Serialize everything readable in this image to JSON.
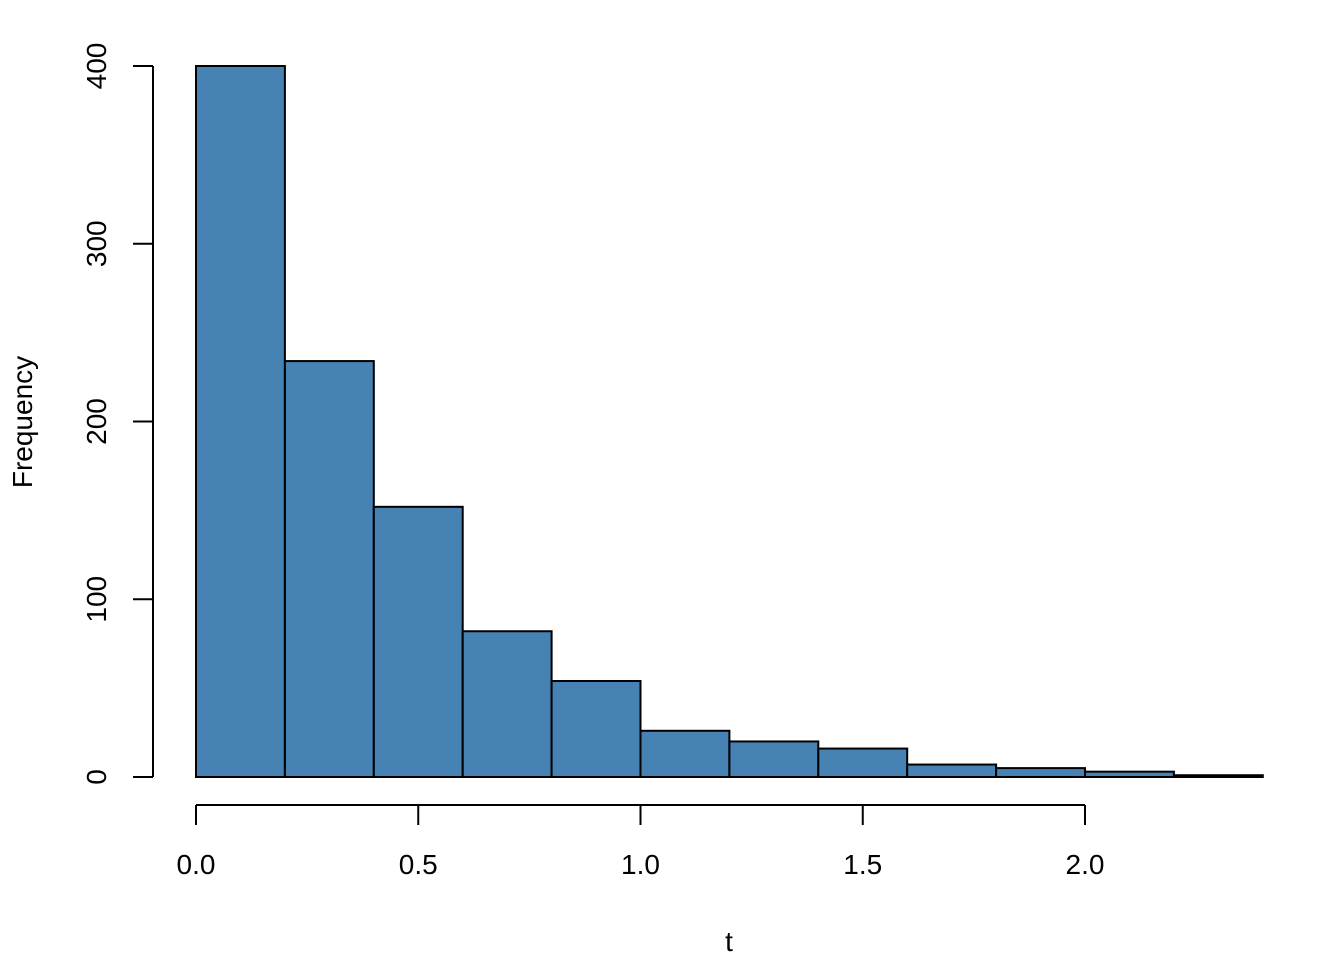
{
  "chart_data": {
    "type": "bar",
    "subtype": "histogram",
    "xlabel": "t",
    "ylabel": "Frequency",
    "bins": [
      {
        "from": 0.0,
        "to": 0.2,
        "count": 400
      },
      {
        "from": 0.2,
        "to": 0.4,
        "count": 234
      },
      {
        "from": 0.4,
        "to": 0.6,
        "count": 152
      },
      {
        "from": 0.6,
        "to": 0.8,
        "count": 82
      },
      {
        "from": 0.8,
        "to": 1.0,
        "count": 54
      },
      {
        "from": 1.0,
        "to": 1.2,
        "count": 26
      },
      {
        "from": 1.2,
        "to": 1.4,
        "count": 20
      },
      {
        "from": 1.4,
        "to": 1.6,
        "count": 16
      },
      {
        "from": 1.6,
        "to": 1.8,
        "count": 7
      },
      {
        "from": 1.8,
        "to": 2.0,
        "count": 5
      },
      {
        "from": 2.0,
        "to": 2.2,
        "count": 3
      },
      {
        "from": 2.2,
        "to": 2.4,
        "count": 1
      }
    ],
    "xticks": [
      0.0,
      0.5,
      1.0,
      1.5,
      2.0
    ],
    "xtick_labels": [
      "0.0",
      "0.5",
      "1.0",
      "1.5",
      "2.0"
    ],
    "yticks": [
      0,
      100,
      200,
      300,
      400
    ],
    "ytick_labels": [
      "0",
      "100",
      "200",
      "300",
      "400"
    ],
    "xlim": [
      0,
      2.4
    ],
    "ylim": [
      0,
      400
    ],
    "bar_color": "#4682B4",
    "edge_color": "#000000",
    "grid": false,
    "legend": "none"
  }
}
